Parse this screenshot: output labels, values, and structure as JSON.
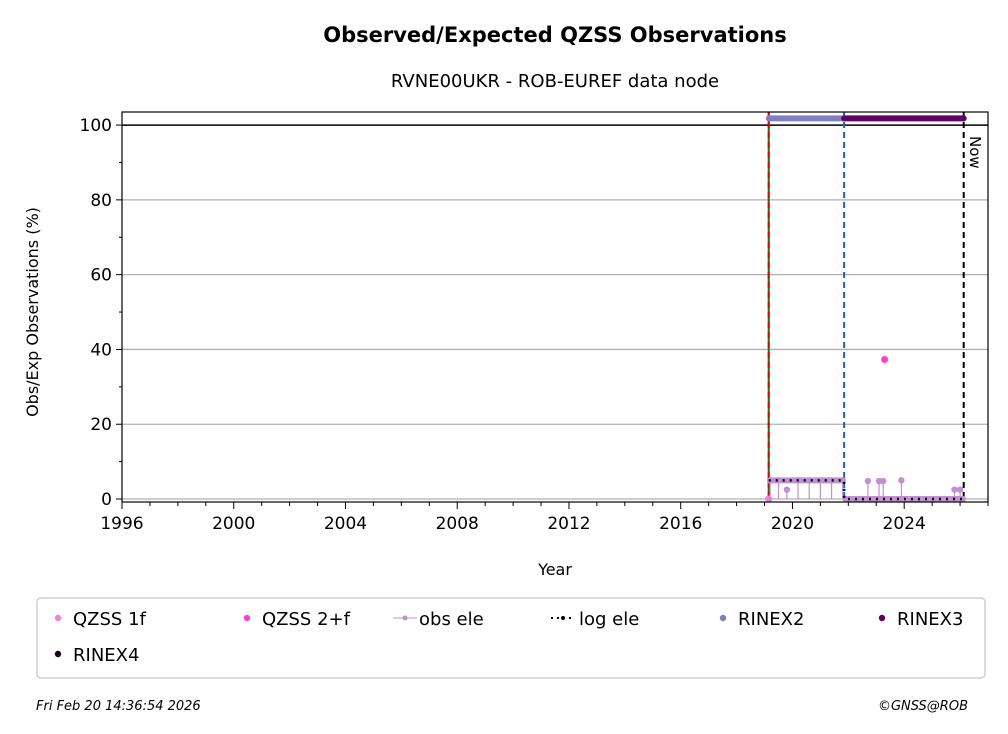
{
  "chart_data": {
    "type": "scatter",
    "title": "Observed/Expected QZSS Observations",
    "subtitle": "RVNE00UKR - ROB-EUREF data node",
    "xlabel": "Year",
    "ylabel": "Obs/Exp Observations (%)",
    "xlim": [
      1996,
      2027
    ],
    "ylim": [
      -0.8,
      103.5
    ],
    "xticks": [
      1996,
      2000,
      2004,
      2008,
      2012,
      2016,
      2020,
      2024
    ],
    "yticks": [
      0,
      20,
      40,
      60,
      80,
      100
    ],
    "grid": "horizontal",
    "now_label": "Now",
    "vlines": [
      {
        "x": 2019.15,
        "color": "#008000",
        "style": "solid"
      },
      {
        "x": 2019.15,
        "color": "#e00000",
        "style": "dashed"
      },
      {
        "x": 2021.85,
        "color": "#1f5fb0",
        "style": "dashed"
      },
      {
        "x": 2026.13,
        "color": "#000000",
        "style": "dashed"
      }
    ],
    "series": [
      {
        "name": "QZSS 1f",
        "color": "#f080d8",
        "points": [
          [
            2019.15,
            0
          ]
        ]
      },
      {
        "name": "QZSS 2+f",
        "color": "#ff40c8",
        "points": [
          [
            2023.3,
            37.3
          ]
        ]
      },
      {
        "name": "obs ele",
        "color": "#c090d0",
        "points": [
          [
            2019.2,
            5
          ],
          [
            2019.5,
            5
          ],
          [
            2019.8,
            2.5
          ],
          [
            2020.2,
            5
          ],
          [
            2020.6,
            5
          ],
          [
            2021.0,
            5
          ],
          [
            2021.4,
            5
          ],
          [
            2021.8,
            5
          ],
          [
            2021.9,
            0
          ],
          [
            2022.5,
            0
          ],
          [
            2022.7,
            4.8
          ],
          [
            2023.1,
            4.8
          ],
          [
            2023.25,
            4.8
          ],
          [
            2023.9,
            5
          ],
          [
            2024.5,
            0
          ],
          [
            2025.2,
            0
          ],
          [
            2025.8,
            2.5
          ],
          [
            2026.0,
            2.5
          ],
          [
            2026.1,
            0
          ]
        ]
      },
      {
        "name": "log ele",
        "color": "#000000",
        "points": [
          [
            2019.15,
            5
          ],
          [
            2021.85,
            5
          ],
          [
            2021.85,
            0
          ],
          [
            2026.13,
            0
          ]
        ]
      },
      {
        "name": "RINEX2",
        "color": "#8080c0",
        "range": [
          2019.15,
          2021.85
        ],
        "y": 101.8
      },
      {
        "name": "RINEX3",
        "color": "#600060",
        "range": [
          2021.85,
          2026.13
        ],
        "y": 101.8
      },
      {
        "name": "RINEX4",
        "color": "#200020",
        "range": []
      }
    ],
    "legend_position": "bottom"
  },
  "footer": {
    "timestamp": "Fri Feb 20 14:36:54 2026",
    "credit": "©GNSS@ROB"
  }
}
